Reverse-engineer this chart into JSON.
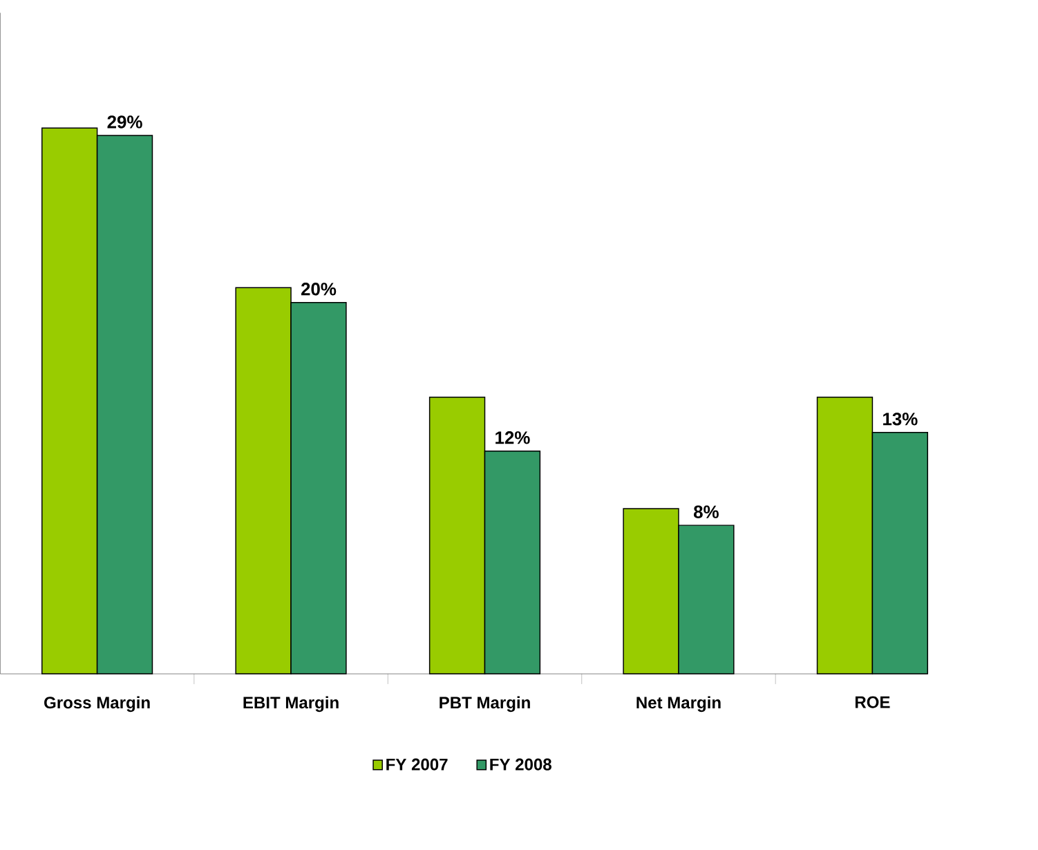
{
  "chart_data": {
    "type": "bar",
    "categories": [
      "Gross Margin",
      "EBIT Margin",
      "PBT Margin",
      "Net Margin",
      "ROE"
    ],
    "series": [
      {
        "name": "FY 2007",
        "color": "#99cc00",
        "values": [
          29.4,
          20.8,
          14.9,
          8.9,
          14.9
        ]
      },
      {
        "name": "FY 2008",
        "color": "#339966",
        "values": [
          29,
          20,
          12,
          8,
          13
        ],
        "value_labels": [
          "29%",
          "20%",
          "12%",
          "8%",
          "13%"
        ]
      }
    ],
    "ylim": [
      0,
      35.6
    ],
    "legend": "bottom"
  }
}
